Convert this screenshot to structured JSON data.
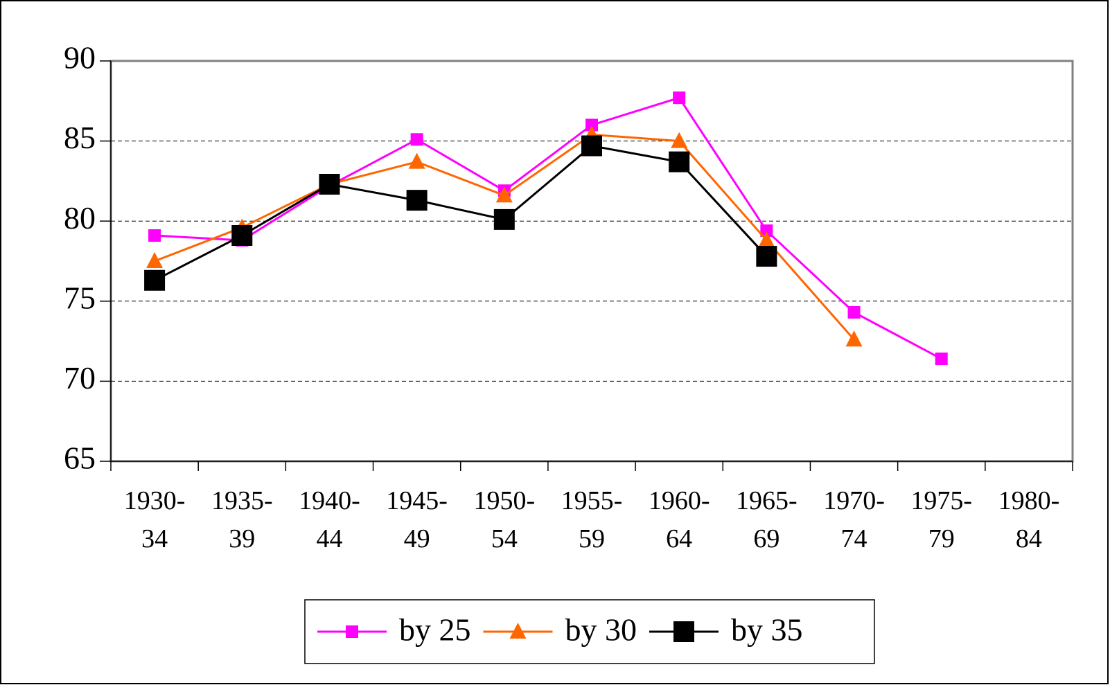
{
  "chart_data": {
    "type": "line",
    "categories": [
      "1930-34",
      "1935-39",
      "1940-44",
      "1945-49",
      "1950-54",
      "1955-59",
      "1960-64",
      "1965-69",
      "1970-74",
      "1975-79",
      "1980-84"
    ],
    "series": [
      {
        "name": "by 25",
        "color": "#ff00ff",
        "marker": "square",
        "values": [
          79.1,
          78.8,
          82.2,
          85.1,
          81.9,
          86.0,
          87.7,
          79.4,
          74.3,
          71.4,
          null
        ]
      },
      {
        "name": "by 30",
        "color": "#ff6600",
        "marker": "triangle",
        "values": [
          77.5,
          79.6,
          82.3,
          83.7,
          81.6,
          85.4,
          85.0,
          78.8,
          72.6,
          null,
          null
        ]
      },
      {
        "name": "by 35",
        "color": "#000000",
        "marker": "big-square",
        "values": [
          76.3,
          79.1,
          82.3,
          81.3,
          80.1,
          84.7,
          83.7,
          77.8,
          null,
          null,
          null
        ]
      }
    ],
    "ylim": [
      65,
      90
    ],
    "yticks": [
      65,
      70,
      75,
      80,
      85,
      90
    ],
    "grid": true,
    "legend": "bottom"
  }
}
